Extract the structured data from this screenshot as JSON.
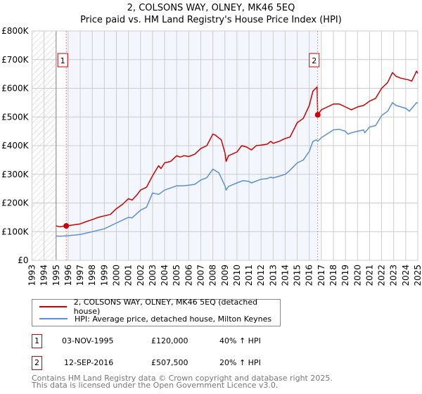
{
  "title_line1": "2, COLSONS WAY, OLNEY, MK46 5EQ",
  "title_line2": "Price paid vs. HM Land Registry's House Price Index (HPI)",
  "chart_data": {
    "type": "line",
    "title": "2, COLSONS WAY, OLNEY, MK46 5EQ — Price paid vs. HM Land Registry's House Price Index (HPI)",
    "xlim": [
      1993,
      2025
    ],
    "ylim": [
      0,
      800000
    ],
    "x_ticks": [
      "1993",
      "1994",
      "1995",
      "1996",
      "1997",
      "1998",
      "1999",
      "2000",
      "2001",
      "2002",
      "2003",
      "2004",
      "2005",
      "2006",
      "2007",
      "2008",
      "2009",
      "2010",
      "2011",
      "2012",
      "2013",
      "2014",
      "2015",
      "2016",
      "2017",
      "2018",
      "2019",
      "2020",
      "2021",
      "2022",
      "2023",
      "2024",
      "2025"
    ],
    "y_ticks": [
      {
        "v": 0,
        "label": "£0"
      },
      {
        "v": 100000,
        "label": "£100K"
      },
      {
        "v": 200000,
        "label": "£200K"
      },
      {
        "v": 300000,
        "label": "£300K"
      },
      {
        "v": 400000,
        "label": "£400K"
      },
      {
        "v": 500000,
        "label": "£500K"
      },
      {
        "v": 600000,
        "label": "£600K"
      },
      {
        "v": 700000,
        "label": "£700K"
      },
      {
        "v": 800000,
        "label": "£800K"
      }
    ],
    "grid": true,
    "hatched_range": [
      1993,
      1995
    ],
    "shaded_range": [
      1995.84,
      2016.7
    ],
    "series": [
      {
        "name": "2, COLSONS WAY, OLNEY, MK46 5EQ (detached house)",
        "color": "#cc0000",
        "x": [
          1995,
          1995.3,
          1995.84,
          1996.5,
          1997,
          1997.5,
          1998,
          1998.5,
          1999,
          1999.5,
          2000,
          2000.5,
          2001,
          2001.3,
          2001.7,
          2002,
          2002.5,
          2003,
          2003.5,
          2003.7,
          2004,
          2004.5,
          2005,
          2005.3,
          2005.6,
          2006,
          2006.5,
          2007,
          2007.5,
          2008,
          2008.2,
          2008.7,
          2009,
          2009.1,
          2009.3,
          2010,
          2010.4,
          2010.8,
          2011.2,
          2011.6,
          2012,
          2012.5,
          2012.8,
          2013,
          2013.5,
          2014,
          2014.4,
          2015,
          2015.5,
          2016,
          2016.3,
          2016.65,
          2016.7,
          2017,
          2017.5,
          2018,
          2018.5,
          2019,
          2019.5,
          2020,
          2020.5,
          2021,
          2021.5,
          2022,
          2022.5,
          2022.9,
          2023.2,
          2023.6,
          2024.2,
          2024.5,
          2024.9,
          2025
        ],
        "y": [
          120000,
          117000,
          120000,
          124000,
          127000,
          135000,
          142000,
          150000,
          155000,
          160000,
          180000,
          195000,
          215000,
          210000,
          228000,
          245000,
          255000,
          295000,
          330000,
          320000,
          340000,
          345000,
          365000,
          360000,
          365000,
          362000,
          370000,
          390000,
          400000,
          440000,
          437000,
          420000,
          375000,
          345000,
          365000,
          378000,
          400000,
          395000,
          385000,
          400000,
          402000,
          405000,
          415000,
          408000,
          415000,
          425000,
          430000,
          480000,
          495000,
          540000,
          590000,
          605000,
          507500,
          525000,
          535000,
          545000,
          545000,
          535000,
          525000,
          535000,
          540000,
          555000,
          565000,
          600000,
          620000,
          655000,
          642000,
          635000,
          630000,
          625000,
          660000,
          652000
        ]
      },
      {
        "name": "HPI: Average price, detached house, Milton Keynes",
        "color": "#5b8fd4",
        "x": [
          1995,
          1995.3,
          1996,
          1997,
          1998,
          1999,
          2000,
          2001,
          2001.3,
          2002,
          2002.5,
          2003,
          2003.5,
          2004,
          2005,
          2005.5,
          2006,
          2006.5,
          2007,
          2007.5,
          2008,
          2008.5,
          2009,
          2009.1,
          2009.3,
          2010,
          2010.5,
          2011,
          2011.2,
          2012,
          2012.5,
          2012.8,
          2013,
          2014,
          2014.3,
          2015,
          2015.5,
          2016,
          2016.3,
          2016.6,
          2016.7,
          2017,
          2018,
          2018.5,
          2019,
          2019.2,
          2019.5,
          2020,
          2020.5,
          2020.6,
          2021,
          2021.5,
          2022,
          2022.5,
          2022.9,
          2023.2,
          2024,
          2024.3,
          2024.9,
          2025
        ],
        "y": [
          85000,
          84000,
          86000,
          90000,
          100000,
          110000,
          130000,
          150000,
          148000,
          175000,
          185000,
          235000,
          230000,
          245000,
          260000,
          260000,
          262000,
          265000,
          280000,
          288000,
          318000,
          305000,
          260000,
          245000,
          258000,
          270000,
          278000,
          275000,
          270000,
          283000,
          285000,
          290000,
          287000,
          300000,
          310000,
          340000,
          350000,
          380000,
          415000,
          420000,
          415000,
          428000,
          455000,
          457000,
          450000,
          440000,
          445000,
          450000,
          455000,
          445000,
          465000,
          470000,
          505000,
          520000,
          550000,
          540000,
          530000,
          520000,
          550000,
          548000
        ]
      }
    ],
    "annotations": [
      {
        "label": "1",
        "x": 1995.84,
        "y": 120000
      },
      {
        "label": "2",
        "x": 2016.7,
        "y": 507500
      }
    ],
    "legend_placement": "below"
  },
  "legend": {
    "items": [
      {
        "label": "2, COLSONS WAY, OLNEY, MK46 5EQ (detached house)",
        "color": "#cc0000"
      },
      {
        "label": "HPI: Average price, detached house, Milton Keynes",
        "color": "#5b8fd4"
      }
    ]
  },
  "transactions": [
    {
      "num": "1",
      "date": "03-NOV-1995",
      "price": "£120,000",
      "hpi": "40% ↑ HPI"
    },
    {
      "num": "2",
      "date": "12-SEP-2016",
      "price": "£507,500",
      "hpi": "20% ↑ HPI"
    }
  ],
  "footer": {
    "line1": "Contains HM Land Registry data © Crown copyright and database right 2025.",
    "line2": "This data is licensed under the Open Government Licence v3.0."
  }
}
